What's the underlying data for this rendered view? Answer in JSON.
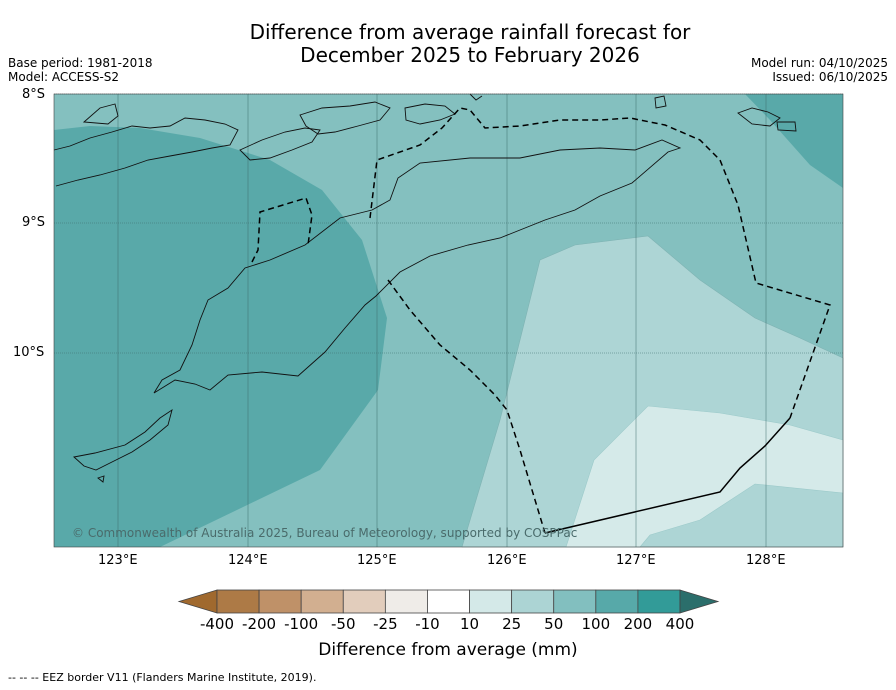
{
  "title_line1": "Difference from average rainfall forecast for",
  "title_line2": "December 2025 to February 2026",
  "left_meta": {
    "base_period": "Base period: 1981-2018",
    "model": "Model: ACCESS-S2"
  },
  "right_meta": {
    "model_run": "Model run: 04/10/2025",
    "issued": "Issued: 06/10/2025"
  },
  "latitude_labels": [
    "8°S",
    "9°S",
    "10°S"
  ],
  "longitude_labels": [
    "123°E",
    "124°E",
    "125°E",
    "126°E",
    "127°E",
    "128°E"
  ],
  "copyright": "© Commonwealth of Australia 2025, Bureau of Meteorology, supported by COSPPac",
  "colorbar": {
    "ticks": [
      "-400",
      "-200",
      "-100",
      "-50",
      "-25",
      "-10",
      "10",
      "25",
      "50",
      "100",
      "200",
      "400"
    ],
    "colors": [
      "#a0692e",
      "#ad7a46",
      "#bf9168",
      "#d2af90",
      "#e2cdbc",
      "#efece8",
      "#ffffff",
      "#d4e9e8",
      "#acd4d4",
      "#82bfbf",
      "#57a9a9",
      "#329b98",
      "#2b6e6b"
    ],
    "label": "Difference from average (mm)"
  },
  "map_fill_colors": {
    "c50": "#84c0bf",
    "c100": "#59a9a9",
    "c25": "#add5d5",
    "c10": "#d5eae9"
  },
  "footer": "--  --  -- EEZ border V11 (Flanders Marine Institute, 2019)."
}
